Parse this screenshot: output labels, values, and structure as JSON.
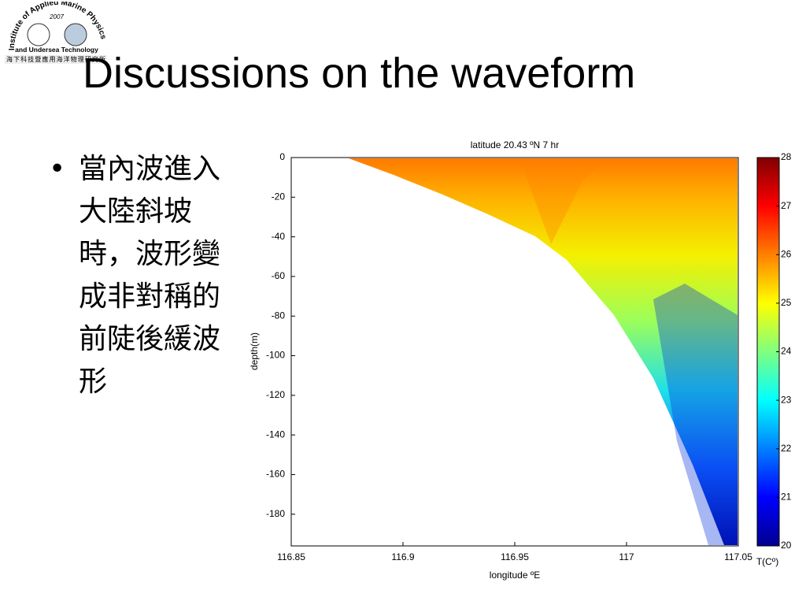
{
  "logo": {
    "top": "Institute of Applied Marine Physics",
    "year": "2007",
    "bottom": "and Undersea Technology",
    "chinese": "海下科技暨應用海洋物理研究所"
  },
  "title": "Discussions on the waveform",
  "bullets": [
    "當內波進入大陸斜坡時，波形變成非對稱的前陡後緩波形"
  ],
  "chart_data": {
    "type": "heatmap",
    "title": "latitude 20.43 ºN  7 hr",
    "x_label": "longitude ºE",
    "y_label": "depth(m)",
    "colorbar_label": "T(Cº)",
    "xlim": [
      116.85,
      117.05
    ],
    "xticks": [
      116.85,
      116.9,
      116.95,
      117,
      117.05
    ],
    "ylim": [
      -196,
      0
    ],
    "yticks": [
      0,
      -20,
      -40,
      -60,
      -80,
      -100,
      -120,
      -140,
      -160,
      -180
    ],
    "clim": [
      20,
      28
    ],
    "cticks": [
      20,
      21,
      22,
      23,
      24,
      25,
      26,
      27,
      28
    ],
    "colormap": "jet"
  }
}
